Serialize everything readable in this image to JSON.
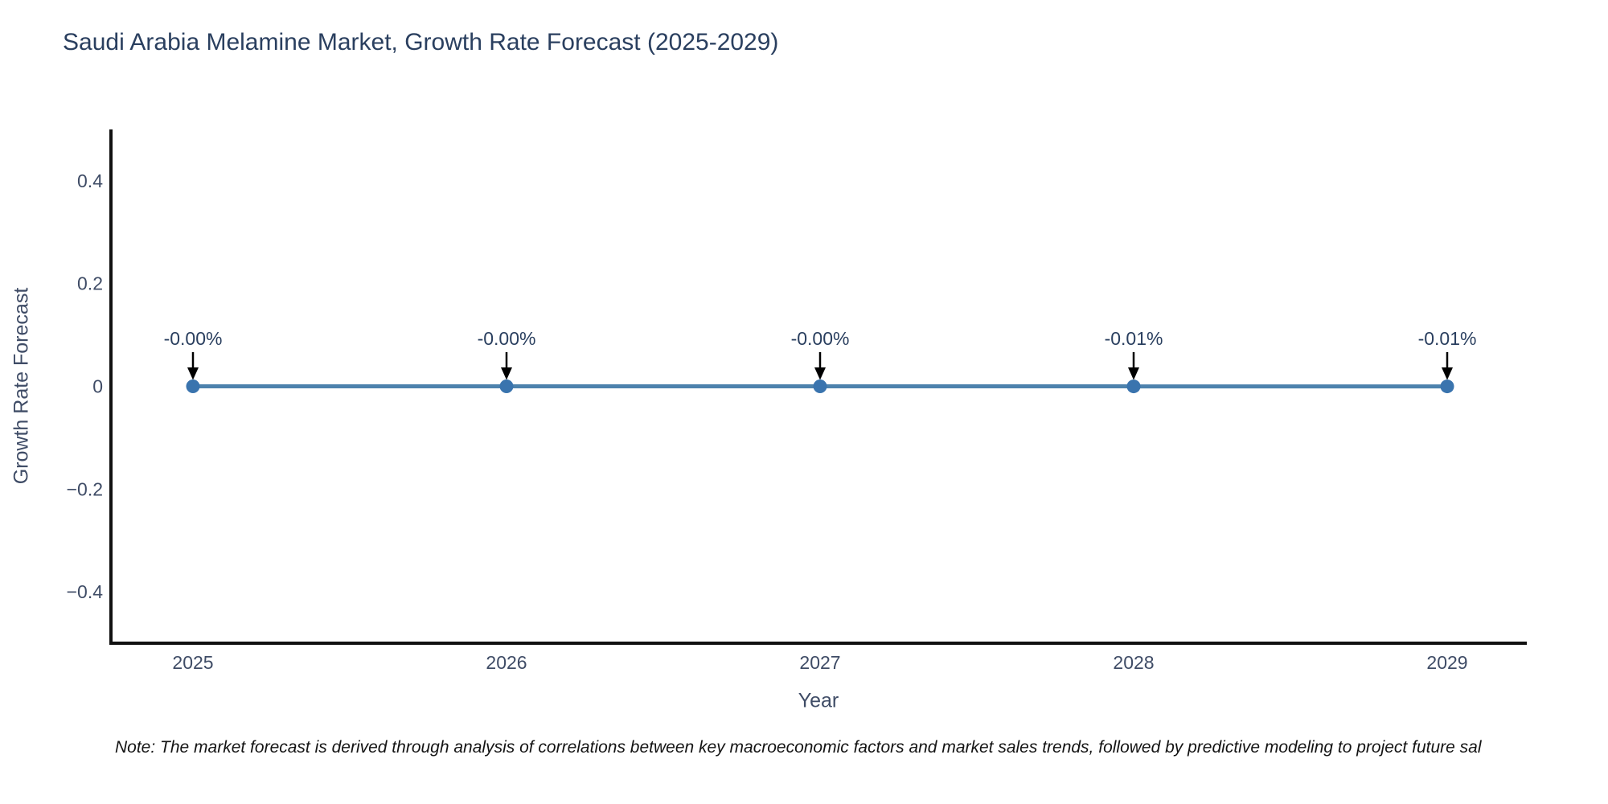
{
  "note": "Note: The market forecast is derived through analysis of correlations between key macroeconomic factors and market sales trends, followed by predictive modeling to project future sal",
  "colors": {
    "title_text": "#2a3f5f",
    "axis_text": "#3f4c66",
    "axis_line": "#111111",
    "line": "#4d82ad",
    "marker": "#3a74ae",
    "arrow": "#000000",
    "background": "#ffffff"
  },
  "chart_data": {
    "type": "line",
    "title": "Saudi Arabia Melamine Market, Growth Rate Forecast (2025-2029)",
    "xlabel": "Year",
    "ylabel": "Growth Rate Forecast",
    "categories": [
      "2025",
      "2026",
      "2027",
      "2028",
      "2029"
    ],
    "series": [
      {
        "name": "Growth Rate Forecast",
        "values_percent": [
          -0.0,
          -0.0,
          -0.0,
          -0.01,
          -0.01
        ],
        "point_labels": [
          "-0.00%",
          "-0.00%",
          "-0.00%",
          "-0.01%",
          "-0.01%"
        ]
      }
    ],
    "ylim": [
      -0.5,
      0.5
    ],
    "y_ticks": [
      0.4,
      0.2,
      0,
      -0.2,
      -0.4
    ],
    "y_tick_labels": [
      "0.4",
      "0.2",
      "0",
      "−0.2",
      "−0.4"
    ],
    "grid": false,
    "legend": "none",
    "annotation_style": "black-arrow-above-point"
  }
}
